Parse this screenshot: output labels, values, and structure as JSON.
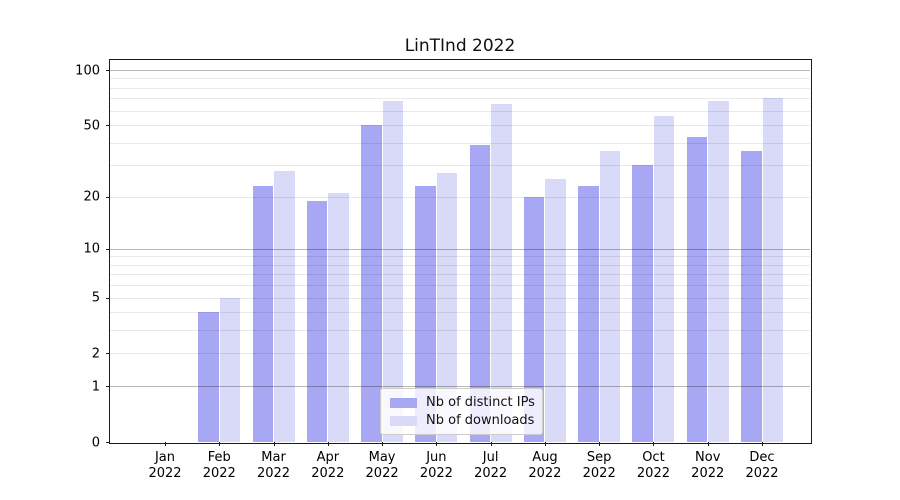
{
  "title": "LinTInd 2022",
  "legend": {
    "items": [
      {
        "label": "Nb of distinct IPs"
      },
      {
        "label": "Nb of downloads"
      }
    ]
  },
  "colors": {
    "dark_bar": "#a7a7f3",
    "light_bar": "#d9d9f8",
    "major_grid": "rgba(0,0,0,0.28)",
    "minor_grid": "rgba(0,0,0,0.085)",
    "axis": "#1a1a1a"
  },
  "chart_data": {
    "type": "bar",
    "title": "LinTInd 2022",
    "categories": [
      "Jan 2022",
      "Feb 2022",
      "Mar 2022",
      "Apr 2022",
      "May 2022",
      "Jun 2022",
      "Jul 2022",
      "Aug 2022",
      "Sep 2022",
      "Oct 2022",
      "Nov 2022",
      "Dec 2022"
    ],
    "series": [
      {
        "name": "Nb of distinct IPs",
        "color": "#a7a7f3",
        "values": [
          0,
          4,
          23,
          19,
          50,
          23,
          39,
          20,
          23,
          30,
          43,
          36
        ]
      },
      {
        "name": "Nb of downloads",
        "color": "#d9d9f8",
        "values": [
          0,
          5,
          28,
          21,
          68,
          27,
          65,
          25,
          36,
          56,
          68,
          70
        ]
      }
    ],
    "yscale": "log1p",
    "ylim": [
      0,
      113
    ],
    "ytick_values": [
      0,
      1,
      2,
      5,
      10,
      20,
      50,
      100
    ],
    "ytick_labels": [
      "0",
      "1",
      "2",
      "5",
      "10",
      "20",
      "50",
      "100"
    ],
    "major_grid_values": [
      1,
      10,
      100
    ],
    "minor_grid_values": [
      2,
      3,
      4,
      5,
      6,
      7,
      8,
      9,
      20,
      30,
      40,
      50,
      60,
      70,
      80,
      90
    ],
    "grid": true,
    "legend_position": "lower center",
    "xlabel": "",
    "ylabel": ""
  }
}
